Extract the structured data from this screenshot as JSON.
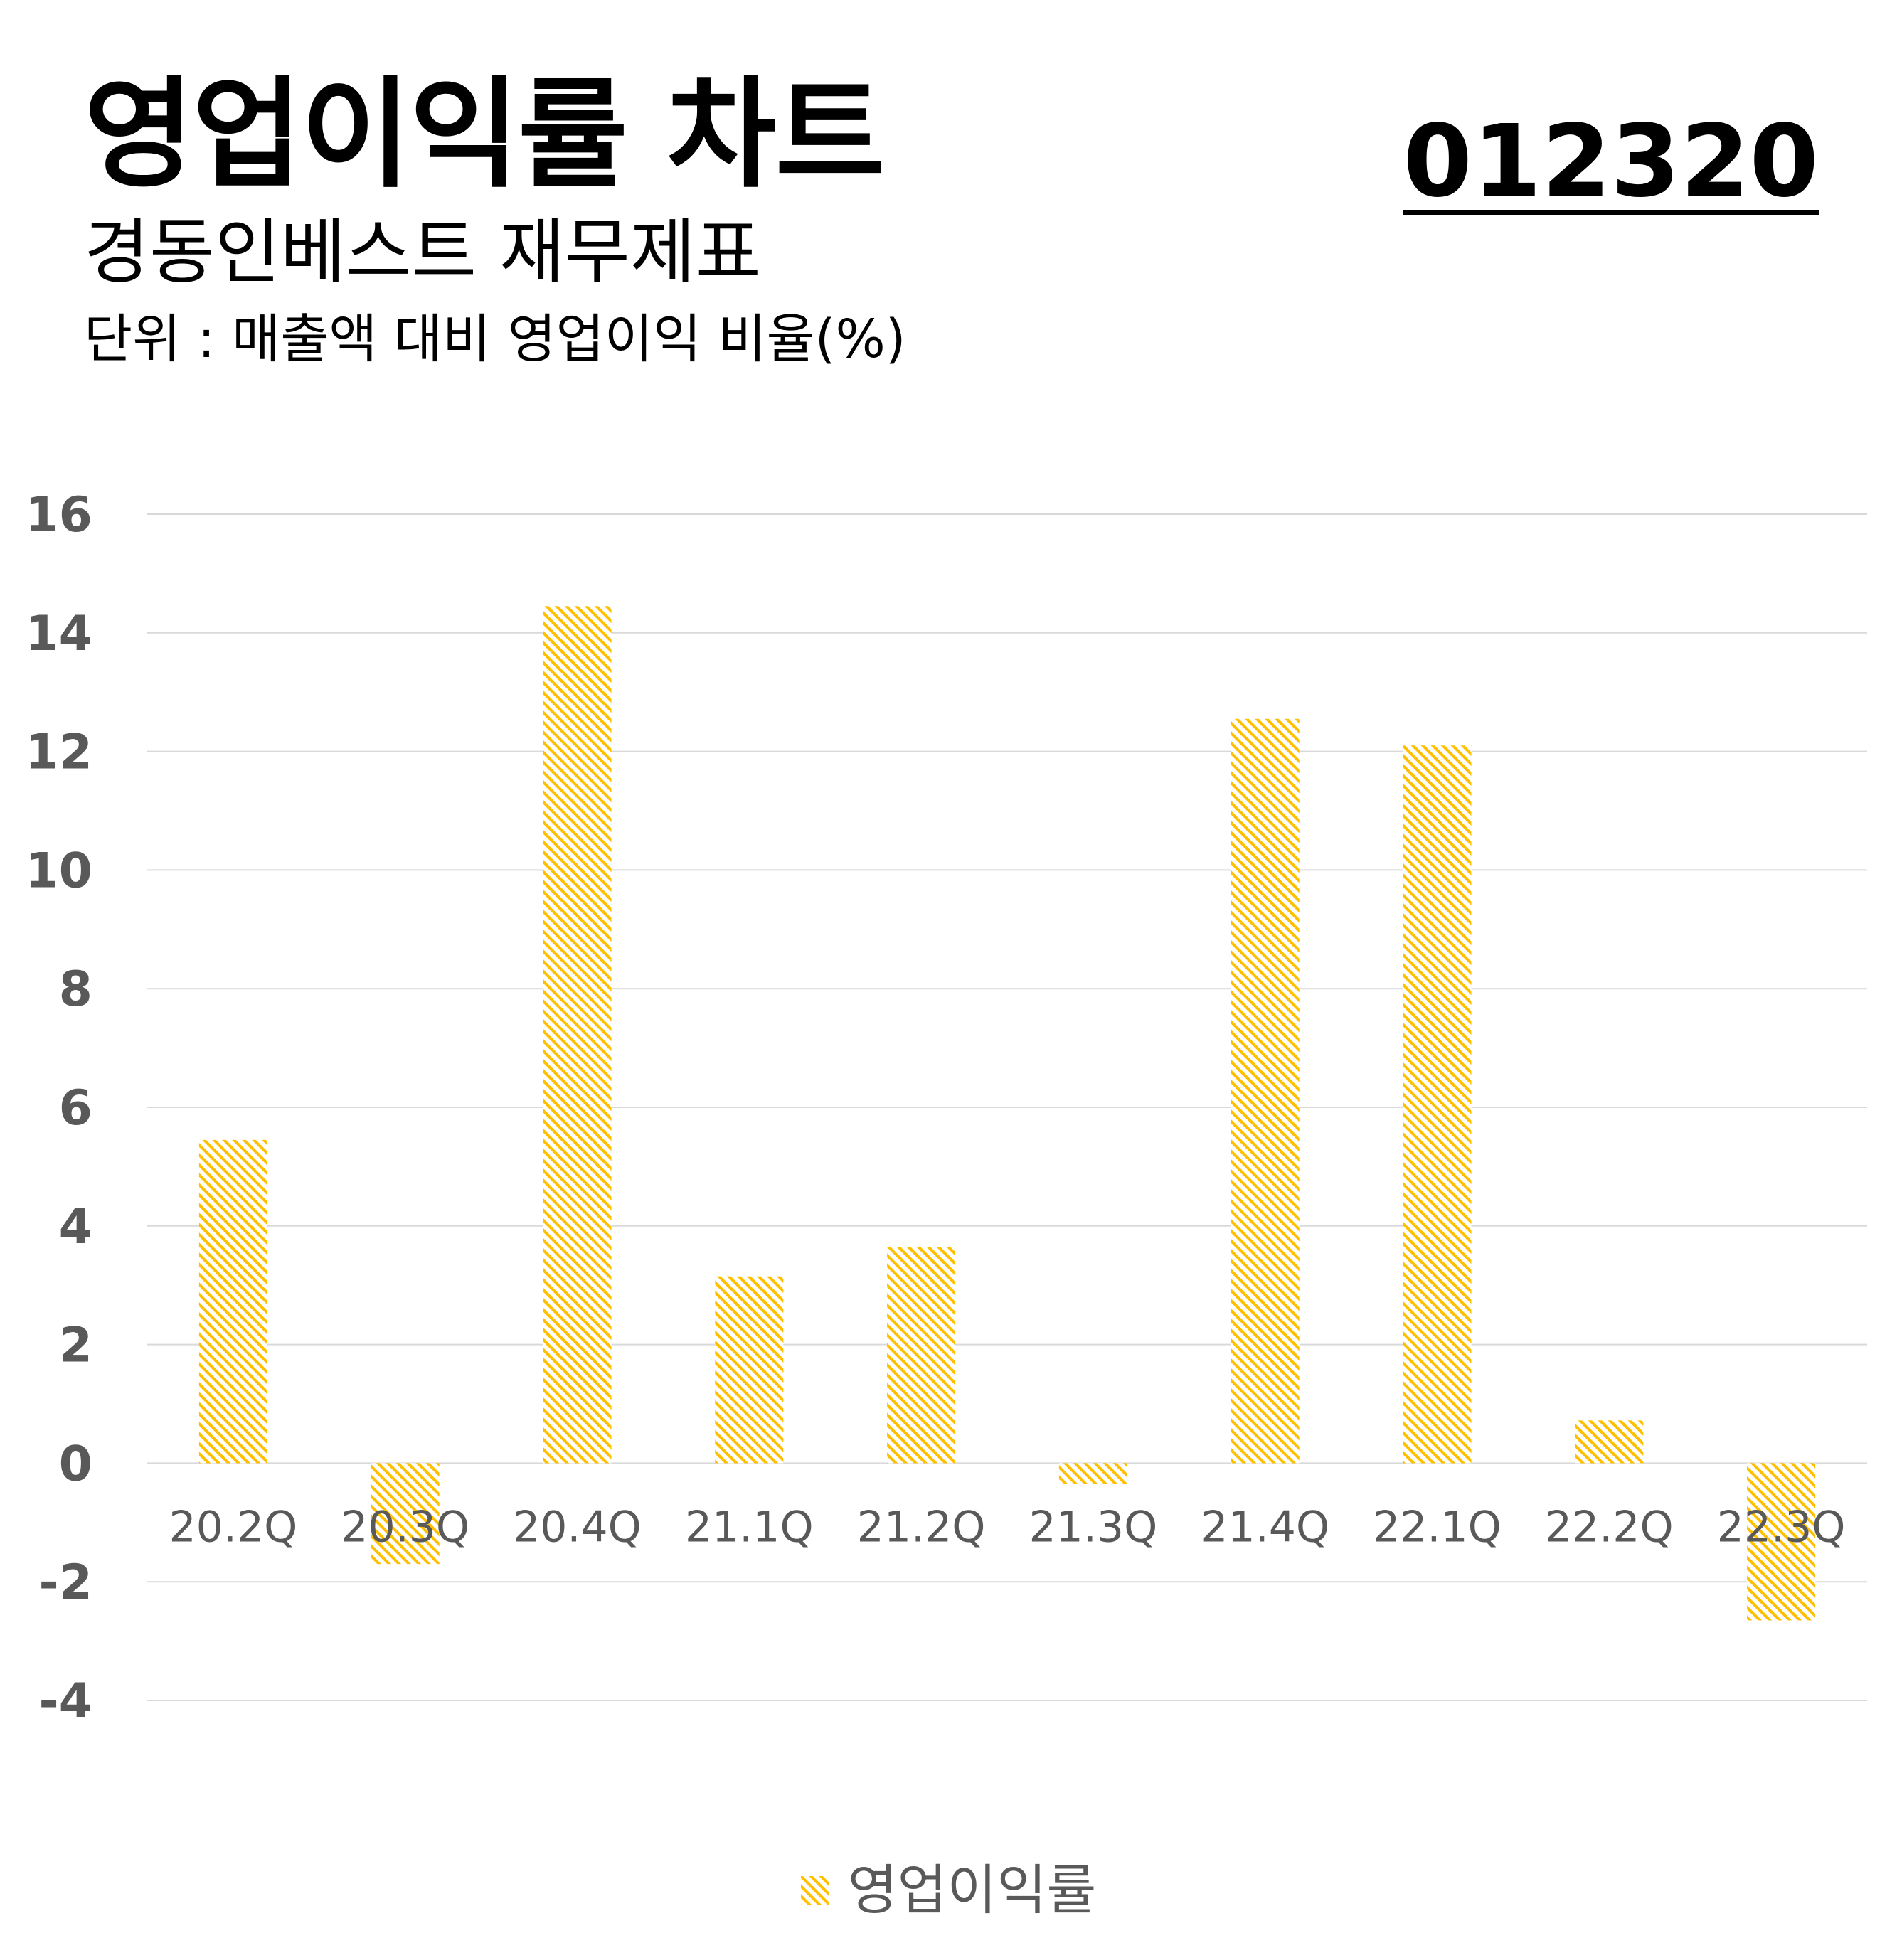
{
  "header": {
    "title": "영업이익률 차트",
    "code": "012320",
    "subtitle": "경동인베스트 재무제표",
    "unit": "단위 : 매출액 대비 영업이익 비율(%)"
  },
  "colors": {
    "bar": "#FFC000",
    "grid": "#D9D9D9",
    "tick_text": "#595959"
  },
  "chart_data": {
    "type": "bar",
    "categories": [
      "20.2Q",
      "20.3Q",
      "20.4Q",
      "21.1Q",
      "21.2Q",
      "21.3Q",
      "21.4Q",
      "22.1Q",
      "22.2Q",
      "22.3Q"
    ],
    "series": [
      {
        "name": "영업이익률",
        "values": [
          5.45,
          -1.7,
          14.45,
          3.15,
          3.65,
          -0.35,
          12.55,
          12.1,
          0.72,
          -2.65
        ],
        "pattern": "diagonal-hatch"
      }
    ],
    "yticks": [
      "16",
      "14",
      "12",
      "10",
      "8",
      "6",
      "4",
      "2",
      "0",
      "-2",
      "-4"
    ],
    "ylim": [
      -4,
      16
    ],
    "grid": true,
    "legend_position": "bottom"
  }
}
